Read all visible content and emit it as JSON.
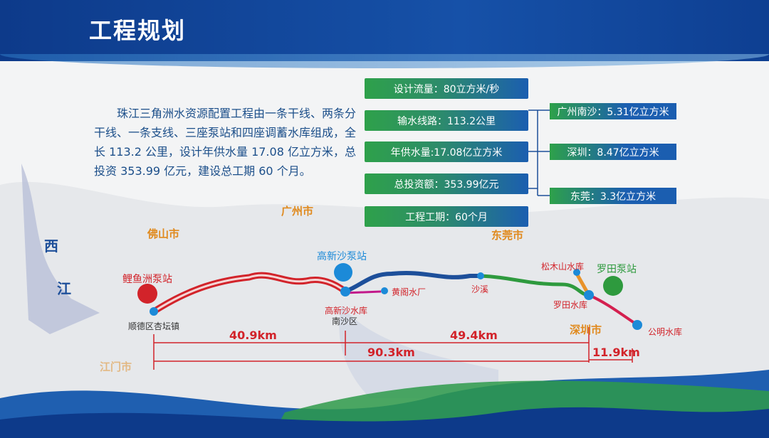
{
  "header": {
    "title": "工程规划"
  },
  "intro": "珠江三角洲水资源配置工程由一条干线、两条分干线、一条支线、三座泵站和四座调蓄水库组成，全长 113.2 公里，设计年供水量 17.08 亿立方米，总投资 353.99 亿元，建设总工期 60 个月。",
  "stats": [
    "设计流量：80立方米/秒",
    "输水线路：113.2公里",
    "年供水量:17.08亿立方米",
    "总投资额：353.99亿元",
    "工程工期：60个月"
  ],
  "allocation": [
    "广州南沙：5.31亿立方米",
    "深圳：8.47亿立方米",
    "东莞：3.3亿立方米"
  ],
  "map": {
    "cities": {
      "guangzhou": "广州市",
      "foshan": "佛山市",
      "dongguan": "东莞市",
      "shenzhen": "深圳市",
      "jiangmen": "江门市",
      "xi": "西",
      "jiang": "江"
    },
    "stations": {
      "liyuzhou": "鲤鱼洲泵站",
      "gaoxinsha": "高新沙泵站",
      "luotian": "罗田泵站"
    },
    "points": {
      "xingtan": "顺德区杏坛镇",
      "gaoxinsha_res": "高新沙水库",
      "nansha": "南沙区",
      "huangge": "黄阁水厂",
      "shaxi": "沙溪",
      "songmushan": "松木山水库",
      "luotian_res": "罗田水库",
      "gongming": "公明水库"
    },
    "distances": [
      "40.9km",
      "49.4km",
      "90.3km",
      "11.9km"
    ],
    "colors": {
      "west_segment": "#d2232a",
      "middle_segment": "#1d4f9a",
      "east_segment": "#2e9a3e",
      "branch_orange": "#e8922a",
      "south_segment": "#d4204f",
      "huangge_branch": "#c2188a"
    }
  }
}
